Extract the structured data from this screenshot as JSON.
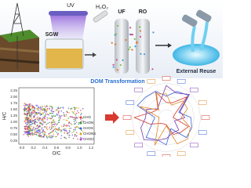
{
  "process": {
    "sgw": "SGW",
    "uv": "UV",
    "oxidant": "H₂O₂",
    "uf": "UF",
    "ro": "RO",
    "reuse": "External Reuse"
  },
  "transformation": "DOM Transformation",
  "scatter": {
    "y_label": "H/C",
    "x_label": "O/C",
    "yticks": [
      "2.25",
      "2.00",
      "1.75",
      "1.50",
      "1.25",
      "1.00",
      "0.75",
      "0.50",
      "0.25"
    ],
    "xticks": [
      "0.0",
      "0.2",
      "0.4",
      "0.6",
      "0.8",
      "1.0",
      "1.2"
    ],
    "legend": [
      "CHO",
      "CHON",
      "CHOS",
      "CHONS",
      "CHOCl"
    ]
  }
}
